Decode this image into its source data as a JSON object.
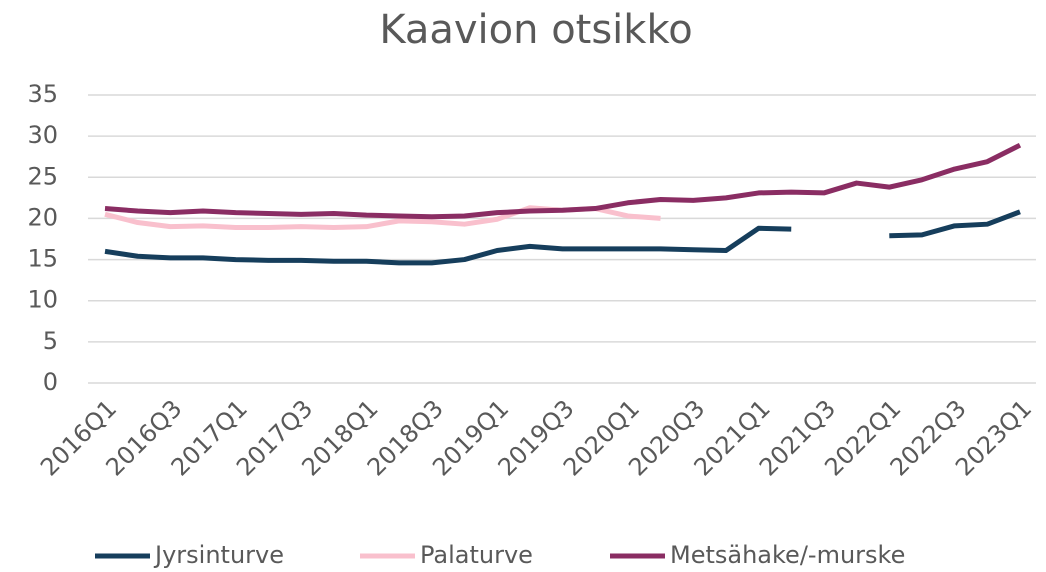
{
  "chart_data": {
    "type": "line",
    "title": "Kaavion otsikko",
    "categories": [
      "2016Q1",
      null,
      "2016Q3",
      null,
      "2017Q1",
      null,
      "2017Q3",
      null,
      "2018Q1",
      null,
      "2018Q3",
      null,
      "2019Q1",
      null,
      "2019Q3",
      null,
      "2020Q1",
      null,
      "2020Q3",
      null,
      "2021Q1",
      null,
      "2021Q3",
      null,
      "2022Q1",
      null,
      "2022Q3",
      null,
      "2023Q1"
    ],
    "series": [
      {
        "name": "Jyrsinturve",
        "color": "#163e5c",
        "values": [
          16.0,
          15.4,
          15.2,
          15.2,
          15.0,
          14.9,
          14.9,
          14.8,
          14.8,
          14.6,
          14.6,
          15.0,
          16.1,
          16.6,
          16.3,
          16.3,
          16.3,
          16.3,
          16.2,
          16.1,
          18.8,
          18.7,
          null,
          null,
          17.9,
          18.0,
          19.1,
          19.3,
          20.8
        ]
      },
      {
        "name": "Palaturve",
        "color": "#f9c0cd",
        "values": [
          20.5,
          19.5,
          19.0,
          19.1,
          18.9,
          18.9,
          19.0,
          18.9,
          19.0,
          19.7,
          19.6,
          19.3,
          19.9,
          21.3,
          21.0,
          21.2,
          20.3,
          20.0,
          null,
          null,
          null,
          null,
          null,
          null,
          null,
          null,
          null,
          null,
          null
        ]
      },
      {
        "name": "Metsähake/-murske",
        "color": "#8a2d63",
        "values": [
          21.2,
          20.9,
          20.7,
          20.9,
          20.7,
          20.6,
          20.5,
          20.6,
          20.4,
          20.3,
          20.2,
          20.3,
          20.7,
          20.9,
          21.0,
          21.2,
          21.9,
          22.3,
          22.2,
          22.5,
          23.1,
          23.2,
          23.1,
          24.3,
          23.8,
          24.7,
          26.0,
          26.9,
          28.9
        ]
      }
    ],
    "ylim": [
      0,
      35
    ],
    "yticks": [
      0,
      5,
      10,
      15,
      20,
      25,
      30,
      35
    ],
    "grid": true,
    "legend": "bottom"
  }
}
